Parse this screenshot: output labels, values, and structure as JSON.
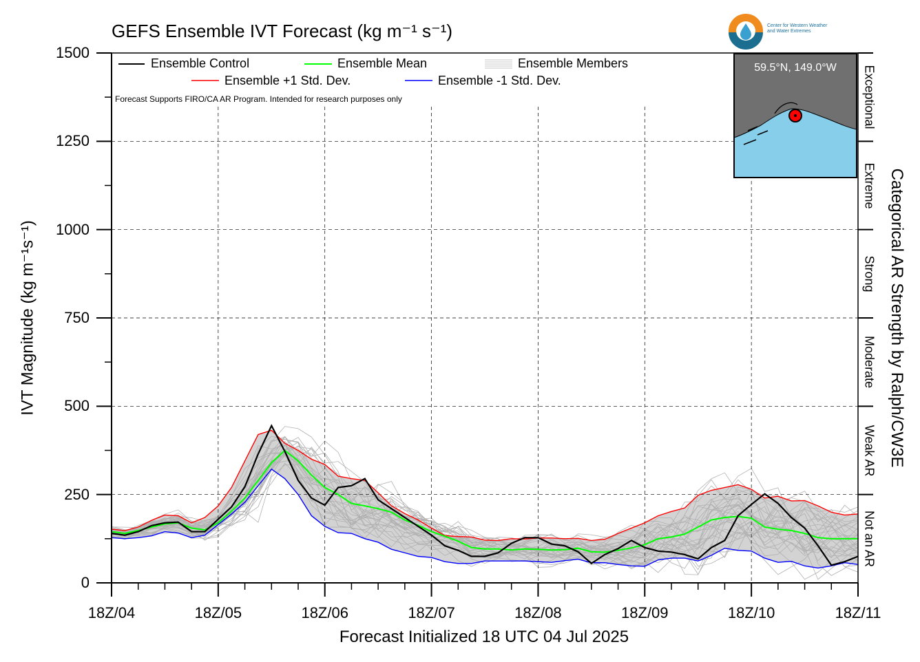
{
  "title": "GEFS Ensemble IVT Forecast (kg m⁻¹ s⁻¹)",
  "ylabel": "IVT Magnitude (kg m⁻¹s⁻¹)",
  "xlabel": "Forecast Initialized 18 UTC 04 Jul 2025",
  "right_label": "Categorical AR Strength by Ralph/CW3E",
  "note": "Forecast Supports FIRO/CA AR Program. Intended for research purposes only",
  "inset": {
    "location": "59.5°N, 149.0°W"
  },
  "logo": {
    "line1": "Center for Western Weather",
    "line2": "and Water Extremes"
  },
  "categories_ar": [
    {
      "label": "Exceptional",
      "from": 1250,
      "to": 1500
    },
    {
      "label": "Extreme",
      "from": 1000,
      "to": 1250
    },
    {
      "label": "Strong",
      "from": 750,
      "to": 1000
    },
    {
      "label": "Moderate",
      "from": 500,
      "to": 750
    },
    {
      "label": "Weak AR",
      "from": 250,
      "to": 500
    },
    {
      "label": "Not an AR",
      "from": 0,
      "to": 250
    }
  ],
  "colors": {
    "control": "#000000",
    "mean": "#00ff00",
    "plus_std": "#ff0000",
    "minus_std": "#0000ff",
    "members": "#b0b0b0",
    "spread_fill": "#d3d3d3",
    "inset_ocean": "#87ceeb",
    "inset_land": "#707070",
    "marker": "#ff0000"
  },
  "chart_data": {
    "type": "line",
    "ylim": [
      0,
      1500
    ],
    "yticks": [
      0,
      250,
      500,
      750,
      1000,
      1250,
      1500
    ],
    "xlim": [
      0,
      168
    ],
    "xticks": [
      {
        "x": 0,
        "label": "18Z/04"
      },
      {
        "x": 24,
        "label": "18Z/05"
      },
      {
        "x": 48,
        "label": "18Z/06"
      },
      {
        "x": 72,
        "label": "18Z/07"
      },
      {
        "x": 96,
        "label": "18Z/08"
      },
      {
        "x": 120,
        "label": "18Z/09"
      },
      {
        "x": 144,
        "label": "18Z/10"
      },
      {
        "x": 168,
        "label": "18Z/11"
      }
    ],
    "grid": true,
    "legend": {
      "position": "top-left"
    },
    "series": [
      {
        "name": "Ensemble Control",
        "key": "control",
        "x": [
          0,
          3,
          6,
          9,
          12,
          15,
          18,
          21,
          24,
          27,
          30,
          33,
          36,
          39,
          42,
          45,
          48,
          51,
          54,
          57,
          60,
          63,
          66,
          69,
          72,
          75,
          78,
          81,
          84,
          87,
          90,
          93,
          96,
          99,
          102,
          105,
          108,
          111,
          114,
          117,
          120,
          123,
          126,
          129,
          132,
          135,
          138,
          141,
          144,
          147,
          150,
          153,
          156,
          159,
          162,
          165,
          168
        ],
        "y": [
          140,
          135,
          145,
          162,
          170,
          172,
          145,
          145,
          180,
          215,
          272,
          365,
          445,
          372,
          290,
          240,
          220,
          270,
          275,
          295,
          235,
          210,
          185,
          160,
          135,
          105,
          92,
          75,
          75,
          85,
          112,
          128,
          128,
          110,
          105,
          88,
          55,
          80,
          97,
          120,
          100,
          90,
          87,
          80,
          68,
          100,
          120,
          190,
          222,
          252,
          225,
          185,
          155,
          105,
          50,
          60,
          75
        ]
      },
      {
        "name": "Ensemble Mean",
        "key": "mean",
        "x": [
          0,
          3,
          6,
          9,
          12,
          15,
          18,
          21,
          24,
          27,
          30,
          33,
          36,
          39,
          42,
          45,
          48,
          51,
          54,
          57,
          60,
          63,
          66,
          69,
          72,
          75,
          78,
          81,
          84,
          87,
          90,
          93,
          96,
          99,
          102,
          105,
          108,
          111,
          114,
          117,
          120,
          123,
          126,
          129,
          132,
          135,
          138,
          141,
          144,
          147,
          150,
          153,
          156,
          159,
          162,
          165,
          168
        ],
        "y": [
          145,
          140,
          148,
          158,
          167,
          170,
          155,
          150,
          170,
          203,
          240,
          290,
          340,
          375,
          345,
          305,
          270,
          250,
          225,
          218,
          210,
          200,
          178,
          163,
          145,
          132,
          118,
          100,
          96,
          96,
          93,
          96,
          95,
          93,
          94,
          98,
          88,
          87,
          92,
          99,
          108,
          125,
          130,
          138,
          158,
          178,
          185,
          188,
          183,
          158,
          152,
          148,
          140,
          128,
          125,
          125,
          125
        ]
      },
      {
        "name": "Ensemble +1 Std. Dev.",
        "key": "plus_std",
        "x": [
          0,
          3,
          6,
          9,
          12,
          15,
          18,
          21,
          24,
          27,
          30,
          33,
          36,
          39,
          42,
          45,
          48,
          51,
          54,
          57,
          60,
          63,
          66,
          69,
          72,
          75,
          78,
          81,
          84,
          87,
          90,
          93,
          96,
          99,
          102,
          105,
          108,
          111,
          114,
          117,
          120,
          123,
          126,
          129,
          132,
          135,
          138,
          141,
          144,
          147,
          150,
          153,
          156,
          159,
          162,
          165,
          168
        ],
        "y": [
          152,
          148,
          158,
          177,
          192,
          190,
          170,
          185,
          218,
          270,
          345,
          420,
          432,
          395,
          375,
          350,
          335,
          302,
          295,
          290,
          255,
          218,
          196,
          178,
          155,
          134,
          131,
          130,
          121,
          120,
          125,
          124,
          127,
          127,
          125,
          126,
          120,
          123,
          140,
          155,
          170,
          190,
          202,
          212,
          248,
          262,
          270,
          278,
          265,
          240,
          245,
          232,
          233,
          218,
          200,
          192,
          195
        ]
      },
      {
        "name": "Ensemble -1 Std. Dev.",
        "key": "minus_std",
        "x": [
          0,
          3,
          6,
          9,
          12,
          15,
          18,
          21,
          24,
          27,
          30,
          33,
          36,
          39,
          42,
          45,
          48,
          51,
          54,
          57,
          60,
          63,
          66,
          69,
          72,
          75,
          78,
          81,
          84,
          87,
          90,
          93,
          96,
          99,
          102,
          105,
          108,
          111,
          114,
          117,
          120,
          123,
          126,
          129,
          132,
          135,
          138,
          141,
          144,
          147,
          150,
          153,
          156,
          159,
          162,
          165,
          168
        ],
        "y": [
          128,
          125,
          128,
          133,
          145,
          141,
          128,
          135,
          165,
          195,
          228,
          275,
          322,
          295,
          250,
          190,
          160,
          142,
          140,
          125,
          115,
          95,
          85,
          75,
          72,
          60,
          55,
          55,
          62,
          62,
          62,
          62,
          60,
          58,
          63,
          67,
          57,
          57,
          52,
          48,
          47,
          65,
          70,
          70,
          62,
          78,
          98,
          92,
          90,
          70,
          58,
          61,
          48,
          42,
          48,
          57,
          52
        ]
      }
    ],
    "members_band": {
      "name": "Ensemble Members",
      "note": "grey spread shading between ±1 std. dev."
    }
  }
}
